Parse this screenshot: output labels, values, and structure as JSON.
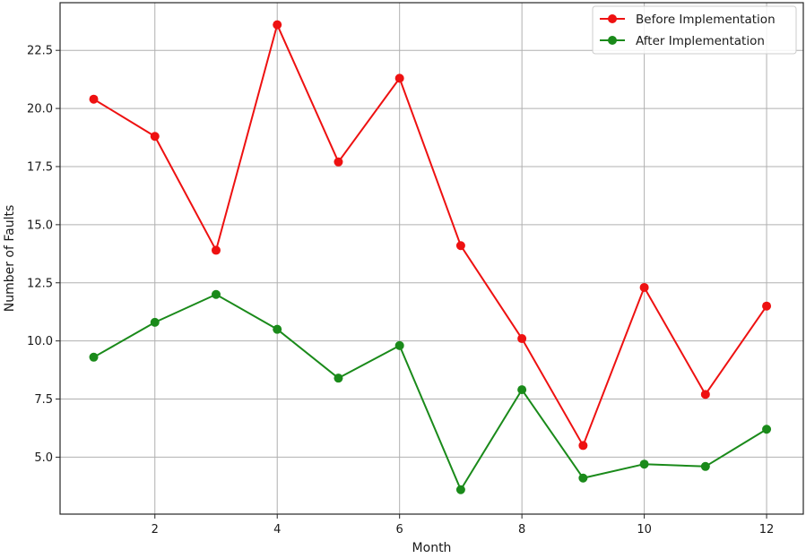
{
  "chart_data": {
    "type": "line",
    "title": "",
    "xlabel": "Month",
    "ylabel": "Number of Faults",
    "x": [
      1,
      2,
      3,
      4,
      5,
      6,
      7,
      8,
      9,
      10,
      11,
      12
    ],
    "xlim": [
      0.45,
      12.6
    ],
    "ylim": [
      2.55,
      24.55
    ],
    "xticks": [
      2,
      4,
      6,
      8,
      10,
      12
    ],
    "yticks": [
      5.0,
      7.5,
      10.0,
      12.5,
      15.0,
      17.5,
      20.0,
      22.5
    ],
    "xtick_labels": [
      "2",
      "4",
      "6",
      "8",
      "10",
      "12"
    ],
    "ytick_labels": [
      "5.0",
      "7.5",
      "10.0",
      "12.5",
      "15.0",
      "17.5",
      "20.0",
      "22.5"
    ],
    "grid": true,
    "legend_position": "top-right",
    "series": [
      {
        "name": "Before Implementation",
        "color": "#ee1111",
        "values": [
          20.4,
          18.8,
          13.9,
          23.6,
          17.7,
          21.3,
          14.1,
          10.1,
          5.5,
          12.3,
          7.7,
          11.5
        ]
      },
      {
        "name": "After Implementation",
        "color": "#1a8a1a",
        "values": [
          9.3,
          10.8,
          12.0,
          10.5,
          8.4,
          9.8,
          3.6,
          7.9,
          4.1,
          4.7,
          4.6,
          6.2
        ]
      }
    ]
  }
}
